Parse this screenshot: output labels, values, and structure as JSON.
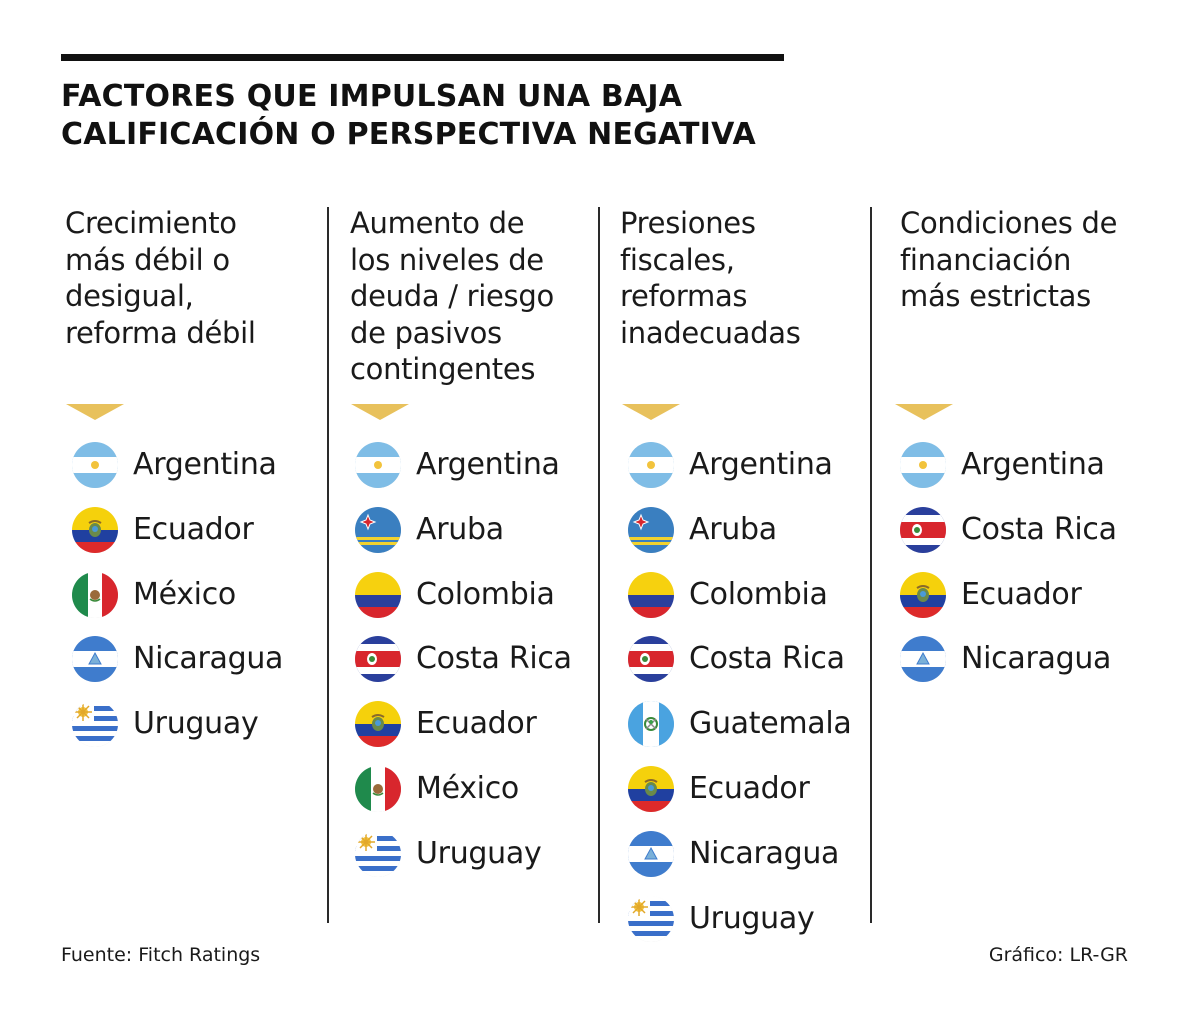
{
  "title": {
    "line1": "FACTORES QUE IMPULSAN UNA BAJA",
    "line2": "CALIFICACIÓN O PERSPECTIVA NEGATIVA"
  },
  "columns": [
    {
      "heading": [
        "Crecimiento",
        "más débil o",
        "desigual,",
        "reforma débil"
      ],
      "countries": [
        "Argentina",
        "Ecuador",
        "México",
        "Nicaragua",
        "Uruguay"
      ]
    },
    {
      "heading": [
        "Aumento de",
        "los niveles de",
        "deuda / riesgo",
        "de pasivos",
        "contingentes"
      ],
      "countries": [
        "Argentina",
        "Aruba",
        "Colombia",
        "Costa Rica",
        "Ecuador",
        "México",
        "Uruguay"
      ]
    },
    {
      "heading": [
        "Presiones",
        "fiscales,",
        "reformas",
        "inadecuadas"
      ],
      "countries": [
        "Argentina",
        "Aruba",
        "Colombia",
        "Costa Rica",
        "Guatemala",
        "Ecuador",
        "Nicaragua",
        "Uruguay"
      ]
    },
    {
      "heading": [
        "Condiciones de",
        "financiación",
        "más estrictas"
      ],
      "countries": [
        "Argentina",
        "Costa Rica",
        "Ecuador",
        "Nicaragua"
      ]
    }
  ],
  "flags": {
    "Argentina": "argentina-flag-icon",
    "Ecuador": "ecuador-flag-icon",
    "México": "mexico-flag-icon",
    "Nicaragua": "nicaragua-flag-icon",
    "Uruguay": "uruguay-flag-icon",
    "Aruba": "aruba-flag-icon",
    "Colombia": "colombia-flag-icon",
    "Costa Rica": "costa-rica-flag-icon",
    "Guatemala": "guatemala-flag-icon"
  },
  "colors": {
    "accent": "#e8c15c",
    "text": "#1a1a1a"
  },
  "footer": {
    "source": "Fuente: Fitch Ratings",
    "credit": "Gráfico: LR-GR"
  }
}
